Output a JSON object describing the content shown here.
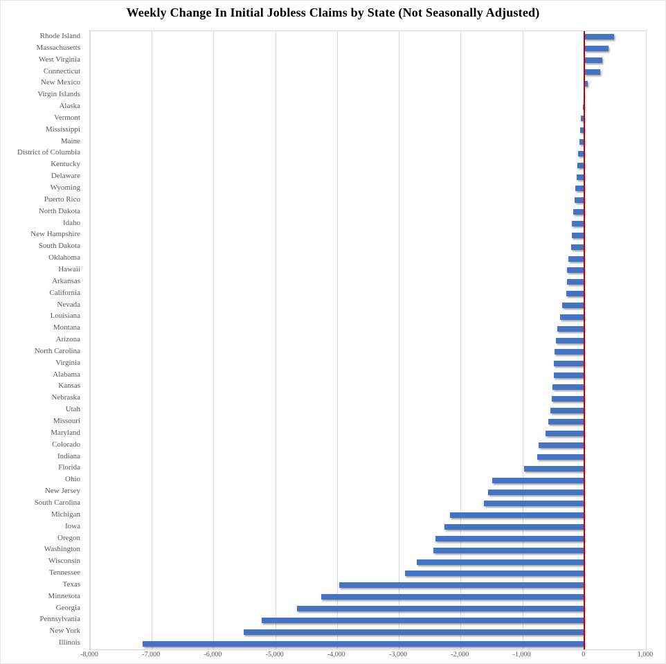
{
  "chart_data": {
    "type": "bar",
    "orientation": "horizontal",
    "title": "Weekly Change In Initial Jobless Claims by State (Not Seasonally Adjusted)",
    "categories": [
      "Rhode Island",
      "Massachusetts",
      "West Virginia",
      "Connecticut",
      "New Mexico",
      "Virgin Islands",
      "Alaska",
      "Vermont",
      "Mississippi",
      "Maine",
      "District of Columbia",
      "Kentucky",
      "Delaware",
      "Wyoming",
      "Puerto Rico",
      "North Dakota",
      "Idaho",
      "New Hampshire",
      "South Dakota",
      "Oklahoma",
      "Hawaii",
      "Arkansas",
      "California",
      "Nevada",
      "Louisiana",
      "Montana",
      "Arizona",
      "North Carolina",
      "Virginia",
      "Alabama",
      "Kansas",
      "Nebraska",
      "Utah",
      "Missouri",
      "Maryland",
      "Colorado",
      "Indiana",
      "Florida",
      "Ohio",
      "New Jersey",
      "South Carolina",
      "Michigan",
      "Iowa",
      "Oregon",
      "Washington",
      "Wisconsin",
      "Tennessee",
      "Texas",
      "Minnesota",
      "Georgia",
      "Pennsylvania",
      "New York",
      "Illinois"
    ],
    "values": [
      480,
      395,
      295,
      260,
      60,
      -5,
      -15,
      -55,
      -68,
      -80,
      -100,
      -110,
      -125,
      -145,
      -160,
      -180,
      -195,
      -200,
      -210,
      -260,
      -275,
      -280,
      -285,
      -360,
      -390,
      -430,
      -455,
      -475,
      -490,
      -495,
      -510,
      -520,
      -550,
      -585,
      -625,
      -735,
      -755,
      -970,
      -1490,
      -1560,
      -1625,
      -2170,
      -2265,
      -2410,
      -2440,
      -2710,
      -2900,
      -3965,
      -4255,
      -4645,
      -5220,
      -5510,
      -7150
    ],
    "xlim": [
      -8000,
      1000
    ],
    "x_ticks": [
      -8000,
      -7000,
      -6000,
      -5000,
      -4000,
      -3000,
      -2000,
      -1000,
      0,
      1000
    ],
    "x_tick_labels": [
      "-8,000",
      "-7,000",
      "-6,000",
      "-5,000",
      "-4,000",
      "-3,000",
      "-2,000",
      "-1,000",
      "0",
      "1,000"
    ],
    "grid": true,
    "legend": false,
    "colors": {
      "bar": "#4472C4",
      "zero_line": "#C00000",
      "gridline": "#D9D9D9",
      "axis_label": "#595959",
      "title": "#000000",
      "background": "#FFFFFF"
    }
  }
}
